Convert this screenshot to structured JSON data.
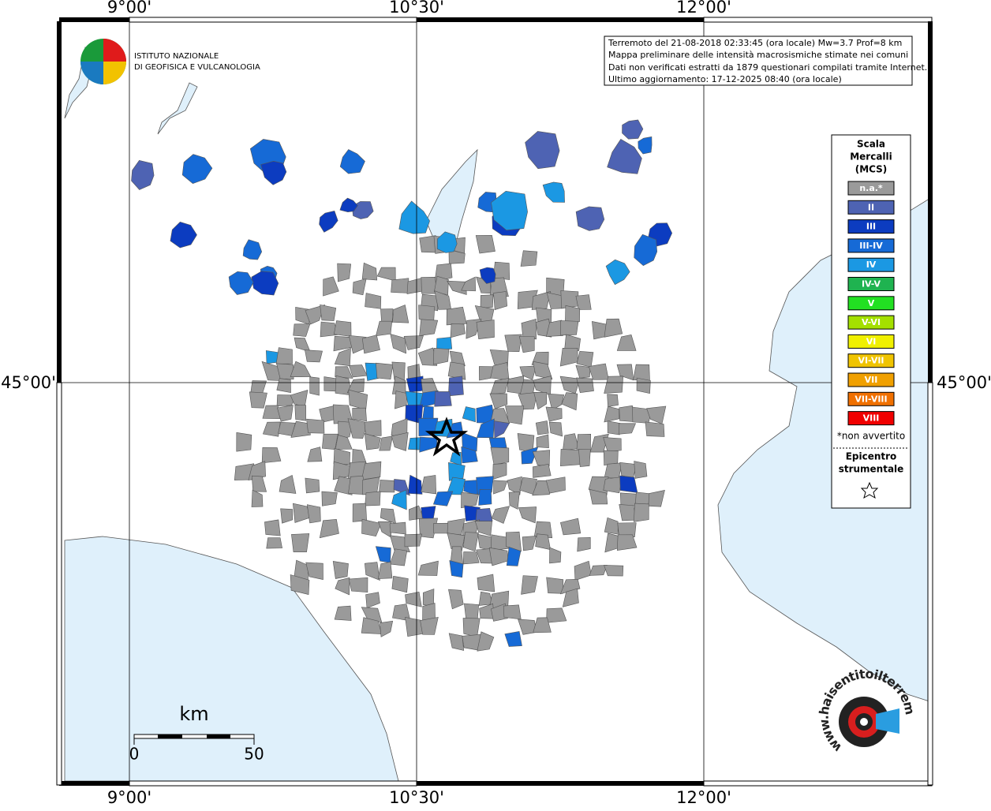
{
  "frame_labels": {
    "top": [
      "9°00'",
      "10°30'",
      "12°00'"
    ],
    "bottom": [
      "9°00'",
      "10°30'",
      "12°00'"
    ],
    "left": "45°00'",
    "right": "45°00'"
  },
  "logo": {
    "line1": "ISTITUTO NAZIONALE",
    "line2": "DI GEOFISICA E VULCANOLOGIA"
  },
  "info": [
    "Terremoto del 21-08-2018 02:33:45 (ora locale) Mw=3.7 Prof=8 km",
    "Mappa preliminare delle intensità macrosismiche stimate nei comuni",
    "Dati non verificati estratti da 1879 questionari compilati tramite Internet.",
    "Ultimo aggiornamento: 17-12-2025 08:40 (ora locale)"
  ],
  "legend": {
    "title": [
      "Scala",
      "Mercalli",
      "(MCS)"
    ],
    "items": [
      {
        "label": "n.a.*",
        "color": "#9a9a9a"
      },
      {
        "label": "II",
        "color": "#4e63b3"
      },
      {
        "label": "III",
        "color": "#0c3cc0"
      },
      {
        "label": "III-IV",
        "color": "#166ad6"
      },
      {
        "label": "IV",
        "color": "#1b98e3"
      },
      {
        "label": "IV-V",
        "color": "#1fb350"
      },
      {
        "label": "V",
        "color": "#22e022"
      },
      {
        "label": "V-VI",
        "color": "#a4e000"
      },
      {
        "label": "VI",
        "color": "#f0f000"
      },
      {
        "label": "VI-VII",
        "color": "#f0c400"
      },
      {
        "label": "VII",
        "color": "#f0a000"
      },
      {
        "label": "VII-VIII",
        "color": "#f07000"
      },
      {
        "label": "VIII",
        "color": "#f00000"
      }
    ],
    "note": "*non avvertito",
    "epicentre": [
      "Epicentro",
      "strumentale"
    ]
  },
  "scale_bar": {
    "unit": "km",
    "start": "0",
    "end": "50"
  },
  "site": "www.haisentitoilterremoto.it"
}
